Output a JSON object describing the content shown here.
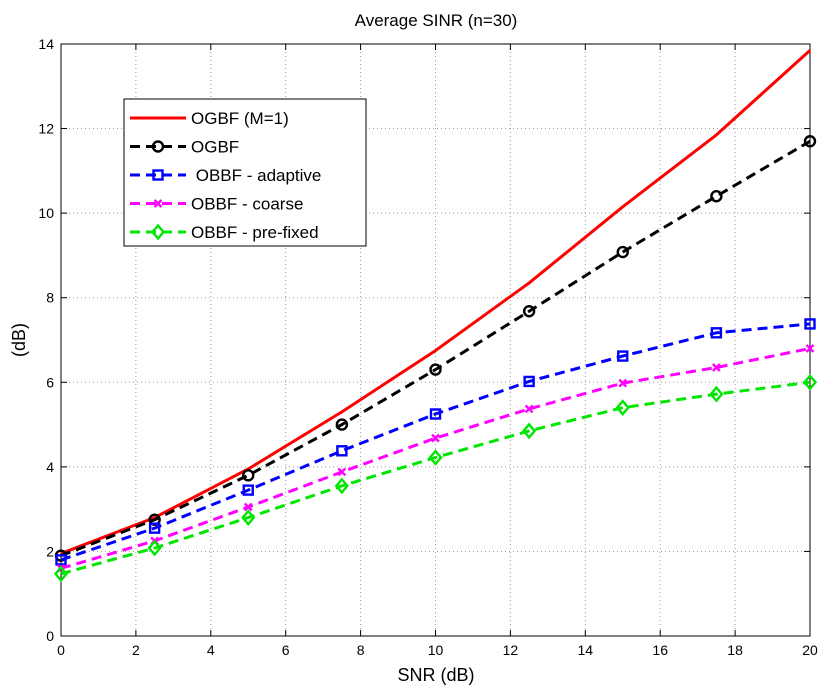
{
  "chart_data": {
    "type": "line",
    "title": "Average SINR (n=30)",
    "xlabel": "SNR (dB)",
    "ylabel": "(dB)",
    "xlim": [
      0,
      20
    ],
    "ylim": [
      0,
      14
    ],
    "xticks": [
      0,
      2,
      4,
      6,
      8,
      10,
      12,
      14,
      16,
      18,
      20
    ],
    "yticks": [
      0,
      2,
      4,
      6,
      8,
      10,
      12,
      14
    ],
    "grid": true,
    "legend_position": "top-left",
    "series": [
      {
        "name": "OGBF (M=1)",
        "color": "#ff0000",
        "line": "solid",
        "marker": "none",
        "x": [
          0,
          2.5,
          5,
          7.5,
          10,
          12.5,
          15,
          17.5,
          20
        ],
        "values": [
          1.95,
          2.8,
          3.95,
          5.3,
          6.75,
          8.35,
          10.15,
          11.85,
          13.85
        ]
      },
      {
        "name": "OGBF",
        "color": "#000000",
        "line": "dashed",
        "marker": "circle",
        "x": [
          0,
          2.5,
          5,
          7.5,
          10,
          12.5,
          15,
          17.5,
          20
        ],
        "values": [
          1.9,
          2.75,
          3.8,
          5.0,
          6.3,
          7.68,
          9.08,
          10.4,
          11.7
        ]
      },
      {
        "name": " OBBF - adaptive",
        "color": "#0000ff",
        "line": "dashed",
        "marker": "square",
        "x": [
          0,
          2.5,
          5,
          7.5,
          10,
          12.5,
          15,
          17.5,
          20
        ],
        "values": [
          1.8,
          2.55,
          3.45,
          4.38,
          5.25,
          6.02,
          6.62,
          7.17,
          7.38
        ]
      },
      {
        "name": "OBBF - coarse",
        "color": "#ff00ff",
        "line": "dashed",
        "marker": "x",
        "x": [
          0,
          2.5,
          5,
          7.5,
          10,
          12.5,
          15,
          17.5,
          20
        ],
        "values": [
          1.6,
          2.25,
          3.05,
          3.88,
          4.68,
          5.37,
          5.98,
          6.35,
          6.8
        ]
      },
      {
        "name": "OBBF - pre-fixed",
        "color": "#00e600",
        "line": "dashed",
        "marker": "diamond",
        "x": [
          0,
          2.5,
          5,
          7.5,
          10,
          12.5,
          15,
          17.5,
          20
        ],
        "values": [
          1.47,
          2.08,
          2.8,
          3.55,
          4.22,
          4.85,
          5.4,
          5.72,
          6.0
        ]
      }
    ]
  }
}
